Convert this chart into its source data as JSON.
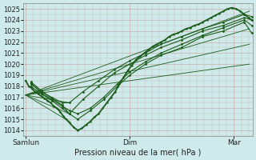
{
  "xlabel": "Pression niveau de la mer( hPa )",
  "xtick_labels": [
    "Samlun",
    "Dim",
    "Mar"
  ],
  "ylim": [
    1013.5,
    1025.5
  ],
  "yticks": [
    1014,
    1015,
    1016,
    1017,
    1018,
    1019,
    1020,
    1021,
    1022,
    1023,
    1024,
    1025
  ],
  "bg_color": "#ceeaea",
  "grid_color": "#c8a8a8",
  "line_color": "#1a5c1a",
  "fig_bg": "#ceeaea",
  "xlim": [
    -0.02,
    2.18
  ],
  "fan_lines": [
    {
      "x": [
        0.0,
        2.15
      ],
      "y": [
        1017.2,
        1024.8
      ]
    },
    {
      "x": [
        0.0,
        2.15
      ],
      "y": [
        1017.2,
        1023.2
      ]
    },
    {
      "x": [
        0.0,
        2.15
      ],
      "y": [
        1017.2,
        1021.8
      ]
    },
    {
      "x": [
        0.0,
        2.15
      ],
      "y": [
        1017.2,
        1020.0
      ]
    },
    {
      "x": [
        0.0,
        0.42
      ],
      "y": [
        1017.2,
        1014.8
      ]
    },
    {
      "x": [
        0.0,
        0.42
      ],
      "y": [
        1017.2,
        1015.5
      ]
    },
    {
      "x": [
        0.0,
        0.42
      ],
      "y": [
        1017.2,
        1016.5
      ]
    }
  ],
  "main_line": {
    "x": [
      0.0,
      0.03,
      0.06,
      0.09,
      0.12,
      0.15,
      0.18,
      0.21,
      0.24,
      0.27,
      0.3,
      0.33,
      0.36,
      0.39,
      0.42,
      0.46,
      0.5,
      0.54,
      0.58,
      0.62,
      0.66,
      0.7,
      0.74,
      0.78,
      0.82,
      0.86,
      0.9,
      0.94,
      0.98,
      1.02,
      1.06,
      1.1,
      1.14,
      1.18,
      1.22,
      1.26,
      1.3,
      1.34,
      1.38,
      1.42,
      1.46,
      1.5,
      1.54,
      1.58,
      1.62,
      1.66,
      1.7,
      1.74,
      1.78,
      1.82,
      1.86,
      1.9,
      1.94,
      1.98,
      2.02,
      2.06,
      2.1,
      2.14,
      2.17
    ],
    "y": [
      1018.5,
      1018.0,
      1017.8,
      1017.5,
      1017.3,
      1017.1,
      1016.9,
      1016.7,
      1016.5,
      1016.2,
      1016.0,
      1015.7,
      1015.3,
      1015.0,
      1014.7,
      1014.3,
      1014.0,
      1014.2,
      1014.5,
      1014.8,
      1015.2,
      1015.5,
      1016.0,
      1016.5,
      1017.0,
      1017.5,
      1018.2,
      1018.8,
      1019.4,
      1019.9,
      1020.4,
      1020.7,
      1021.0,
      1021.3,
      1021.6,
      1021.8,
      1022.0,
      1022.2,
      1022.5,
      1022.7,
      1022.8,
      1023.0,
      1023.2,
      1023.3,
      1023.5,
      1023.6,
      1023.8,
      1024.0,
      1024.2,
      1024.4,
      1024.6,
      1024.8,
      1025.0,
      1025.1,
      1025.0,
      1024.8,
      1024.5,
      1024.2,
      1024.0
    ]
  },
  "bundle_lines": [
    {
      "x": [
        0.05,
        0.15,
        0.25,
        0.35,
        0.42,
        0.55,
        0.7,
        0.85,
        1.0,
        1.15,
        1.3,
        1.5,
        1.7,
        1.9,
        2.1,
        2.17
      ],
      "y": [
        1018.2,
        1017.5,
        1017.0,
        1016.5,
        1016.5,
        1017.5,
        1018.5,
        1019.5,
        1020.3,
        1021.0,
        1021.8,
        1022.5,
        1023.2,
        1023.8,
        1024.5,
        1024.3
      ]
    },
    {
      "x": [
        0.05,
        0.15,
        0.25,
        0.35,
        0.42,
        0.55,
        0.7,
        0.85,
        1.0,
        1.15,
        1.3,
        1.5,
        1.7,
        1.9,
        2.1,
        2.17
      ],
      "y": [
        1018.0,
        1017.3,
        1016.7,
        1016.0,
        1015.5,
        1016.8,
        1018.0,
        1019.2,
        1020.0,
        1020.8,
        1021.5,
        1022.2,
        1023.0,
        1023.5,
        1024.2,
        1024.0
      ]
    },
    {
      "x": [
        0.05,
        0.15,
        0.25,
        0.35,
        0.42,
        0.5,
        0.62,
        0.75,
        0.88,
        1.0,
        1.15,
        1.3,
        1.5,
        1.7,
        1.9,
        2.1,
        2.17
      ],
      "y": [
        1018.3,
        1017.4,
        1016.8,
        1016.2,
        1015.8,
        1015.5,
        1016.0,
        1017.0,
        1018.2,
        1019.3,
        1020.2,
        1021.0,
        1021.8,
        1022.6,
        1023.3,
        1024.0,
        1023.5
      ]
    },
    {
      "x": [
        0.05,
        0.15,
        0.25,
        0.35,
        0.42,
        0.5,
        0.62,
        0.75,
        0.88,
        1.0,
        1.15,
        1.3,
        1.5,
        1.7,
        1.9,
        2.1,
        2.17
      ],
      "y": [
        1018.4,
        1017.6,
        1016.9,
        1016.3,
        1015.5,
        1015.0,
        1015.8,
        1016.8,
        1018.0,
        1019.0,
        1020.0,
        1020.8,
        1021.5,
        1022.5,
        1023.0,
        1023.8,
        1022.8
      ]
    }
  ]
}
